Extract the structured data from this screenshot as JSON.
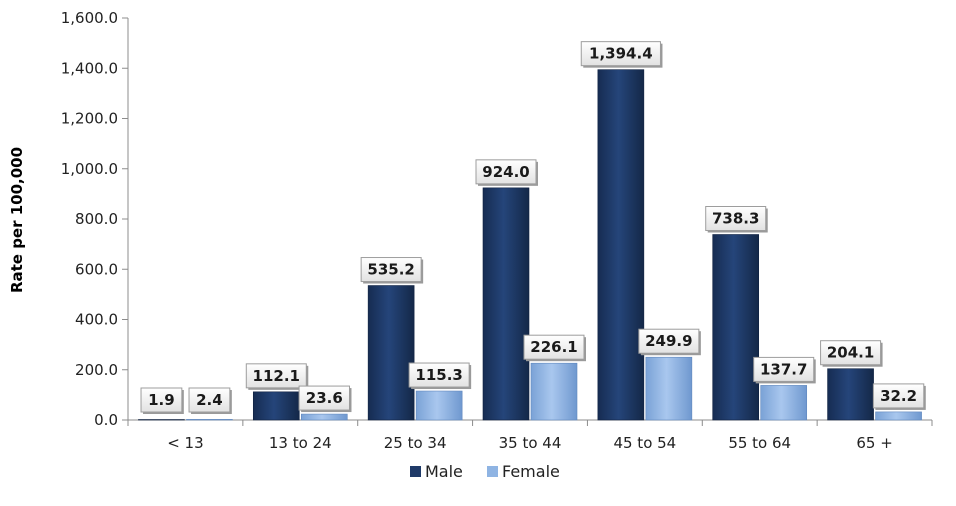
{
  "chart_data": {
    "type": "bar",
    "title": "",
    "xlabel": "",
    "ylabel": "Rate per 100,000",
    "ylim": [
      0,
      1600
    ],
    "ytick_step": 200,
    "ytick_labels": [
      "0.0",
      "200.0",
      "400.0",
      "600.0",
      "800.0",
      "1,000.0",
      "1,200.0",
      "1,400.0",
      "1,600.0"
    ],
    "grid": false,
    "legend_position": "bottom",
    "categories": [
      "< 13",
      "13 to 24",
      "25 to 34",
      "35 to 44",
      "45 to 54",
      "55 to 64",
      "65 +"
    ],
    "series": [
      {
        "name": "Male",
        "color": "#1f3a68",
        "values": [
          1.9,
          112.1,
          535.2,
          924.0,
          1394.4,
          738.3,
          204.1
        ],
        "labels": [
          "1.9",
          "112.1",
          "535.2",
          "924.0",
          "1,394.4",
          "738.3",
          "204.1"
        ]
      },
      {
        "name": "Female",
        "color": "#8fb4e3",
        "values": [
          2.4,
          23.6,
          115.3,
          226.1,
          249.9,
          137.7,
          32.2
        ],
        "labels": [
          "2.4",
          "23.6",
          "115.3",
          "226.1",
          "249.9",
          "137.7",
          "32.2"
        ]
      }
    ]
  }
}
